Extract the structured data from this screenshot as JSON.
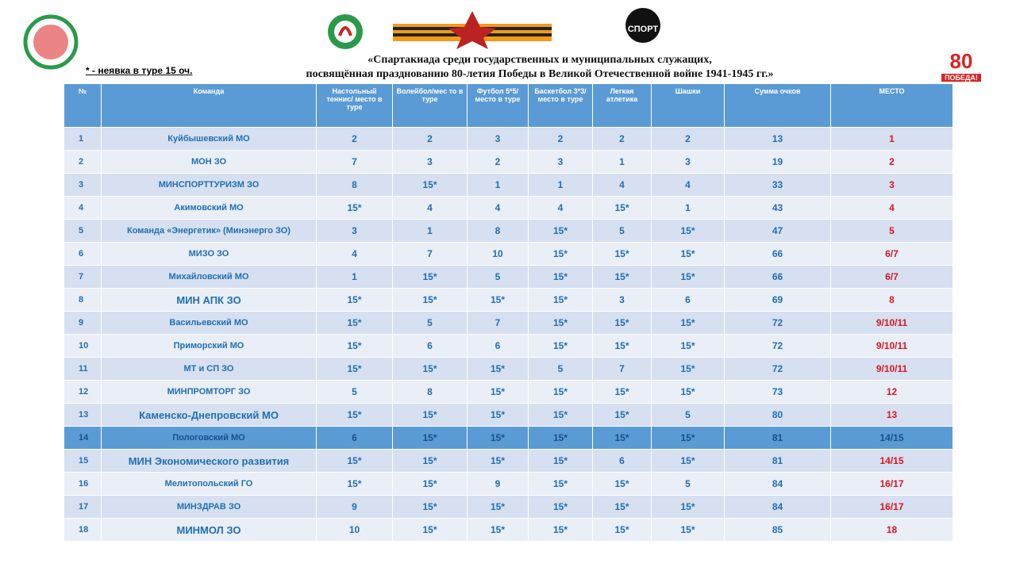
{
  "header": {
    "title_line1": "«Спартакиада  среди государственных и муниципальных служащих,",
    "title_line2": "посвящённая празднованию 80-летия Победы в Великой Отечественной войне 1941-1945 гг.»",
    "note": "* - неявка в туре 15 оч."
  },
  "logos": {
    "sport": "СПОРТ",
    "victory_number": "80",
    "victory_text": "ПОБЕДА!"
  },
  "table": {
    "columns": [
      "№",
      "Команда",
      "Настольный теннис/ место в туре",
      "Волейбол/мес то в туре",
      "Футбол 5*5/ место в туре",
      "Баскетбол 3*3/ место в туре",
      "Легкая атлетика",
      "Шашки",
      "Сумма очков",
      "МЕСТО"
    ],
    "rows": [
      [
        "1",
        "Куйбышевский  МО",
        "2",
        "2",
        "3",
        "2",
        "2",
        "2",
        "13",
        "1"
      ],
      [
        "2",
        "МОН ЗО",
        "7",
        "3",
        "2",
        "3",
        "1",
        "3",
        "19",
        "2"
      ],
      [
        "3",
        "МИНСПОРТТУРИЗМ  ЗО",
        "8",
        "15*",
        "1",
        "1",
        "4",
        "4",
        "33",
        "3"
      ],
      [
        "4",
        "Акимовский  МО",
        "15*",
        "4",
        "4",
        "4",
        "15*",
        "1",
        "43",
        "4"
      ],
      [
        "5",
        "Команда  «Энергетик» (Минэнерго ЗО)",
        "3",
        "1",
        "8",
        "15*",
        "5",
        "15*",
        "47",
        "5"
      ],
      [
        "6",
        "МИЗО ЗО",
        "4",
        "7",
        "10",
        "15*",
        "15*",
        "15*",
        "66",
        "6/7"
      ],
      [
        "7",
        "Михайловский  МО",
        "1",
        "15*",
        "5",
        "15*",
        "15*",
        "15*",
        "66",
        "6/7"
      ],
      [
        "8",
        "МИН АПК ЗО",
        "15*",
        "15*",
        "15*",
        "15*",
        "3",
        "6",
        "69",
        "8"
      ],
      [
        "9",
        "Васильевский  МО",
        "15*",
        "5",
        "7",
        "15*",
        "15*",
        "15*",
        "72",
        "9/10/11"
      ],
      [
        "10",
        "Приморский  МО",
        "15*",
        "6",
        "6",
        "15*",
        "15*",
        "15*",
        "72",
        "9/10/11"
      ],
      [
        "11",
        "МТ и СП ЗО",
        "15*",
        "15*",
        "15*",
        "5",
        "7",
        "15*",
        "72",
        "9/10/11"
      ],
      [
        "12",
        "МИНПРОМТОРГ  ЗО",
        "5",
        "8",
        "15*",
        "15*",
        "15*",
        "15*",
        "73",
        "12"
      ],
      [
        "13",
        "Каменско-Днепровский МО",
        "15*",
        "15*",
        "15*",
        "15*",
        "15*",
        "5",
        "80",
        "13"
      ],
      [
        "14",
        "Пологовский  МО",
        "6",
        "15*",
        "15*",
        "15*",
        "15*",
        "15*",
        "81",
        "14/15"
      ],
      [
        "15",
        "МИН Экономического развития",
        "15*",
        "15*",
        "15*",
        "15*",
        "6",
        "15*",
        "81",
        "14/15"
      ],
      [
        "16",
        "Мелитопольский  ГО",
        "15*",
        "15*",
        "9",
        "15*",
        "15*",
        "5",
        "84",
        "16/17"
      ],
      [
        "17",
        "МИНЗДРАВ  ЗО",
        "9",
        "15*",
        "15*",
        "15*",
        "15*",
        "15*",
        "84",
        "16/17"
      ],
      [
        "18",
        "МИНМОЛ ЗО",
        "10",
        "15*",
        "15*",
        "15*",
        "15*",
        "15*",
        "85",
        "18"
      ]
    ]
  }
}
